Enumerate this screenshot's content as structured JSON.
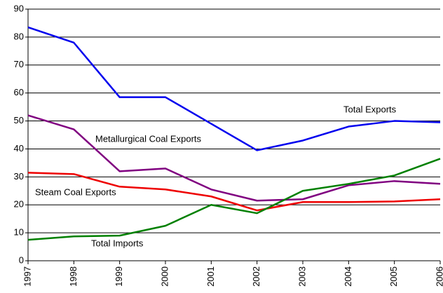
{
  "chart_data": {
    "type": "line",
    "categories": [
      "1997",
      "1998",
      "1999",
      "2000",
      "2001",
      "2002",
      "2003",
      "2004",
      "2005",
      "2006"
    ],
    "series": [
      {
        "name": "Total Exports",
        "color": "#0000ee",
        "values": [
          83.5,
          78,
          58.5,
          58.5,
          49,
          39.5,
          43,
          48,
          50,
          49.5
        ]
      },
      {
        "name": "Metallurgical Coal Exports",
        "color": "#800080",
        "values": [
          52,
          47,
          32,
          33,
          25.5,
          21.5,
          22,
          27,
          28.5,
          27.5
        ]
      },
      {
        "name": "Steam Coal Exports",
        "color": "#ee0000",
        "values": [
          31.5,
          31,
          26.5,
          25.5,
          23,
          18,
          21,
          21,
          21.2,
          22
        ]
      },
      {
        "name": "Total Imports",
        "color": "#008000",
        "values": [
          7.5,
          8.7,
          9,
          12.5,
          20,
          17,
          25,
          27.5,
          30.5,
          36.5
        ]
      }
    ],
    "ylim": [
      0,
      90
    ],
    "yticks": [
      0,
      10,
      20,
      30,
      40,
      50,
      60,
      70,
      80,
      90
    ],
    "grid": true
  }
}
